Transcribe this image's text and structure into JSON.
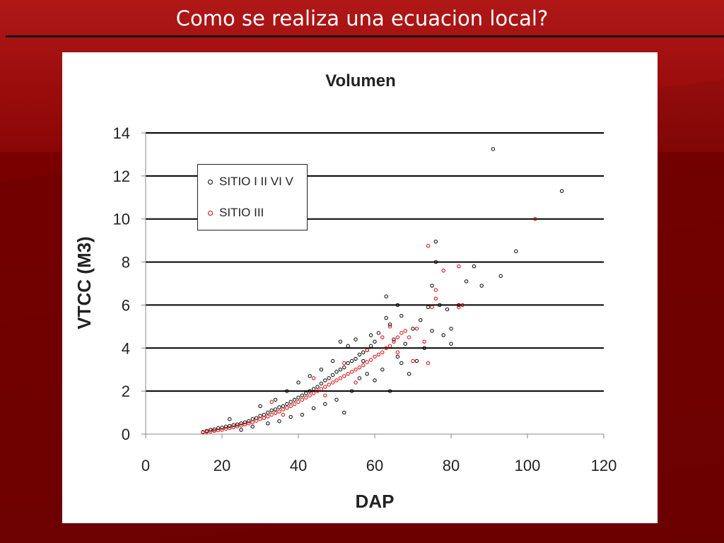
{
  "slide": {
    "title": "Como se realiza una ecuacion local?"
  },
  "colors": {
    "background": "#7a0000",
    "series_black": "#000000",
    "series_red": "#e00000"
  },
  "chart_data": {
    "type": "scatter",
    "title": "Volumen",
    "xlabel": "DAP",
    "ylabel": "VTCC (M3)",
    "xlim": [
      0,
      120
    ],
    "ylim": [
      0,
      14
    ],
    "xticks": [
      "0",
      "20",
      "40",
      "60",
      "80",
      "100",
      "120"
    ],
    "yticks": [
      "0",
      "2",
      "4",
      "6",
      "8",
      "10",
      "12",
      "14"
    ],
    "grid": "horizontal",
    "legend_position": "upper-left-inside",
    "series": [
      {
        "name": "SITIO I II VI V",
        "color": "#000000",
        "points": [
          [
            15,
            0.1
          ],
          [
            16,
            0.15
          ],
          [
            17,
            0.2
          ],
          [
            18,
            0.22
          ],
          [
            19,
            0.28
          ],
          [
            20,
            0.3
          ],
          [
            21,
            0.35
          ],
          [
            22,
            0.38
          ],
          [
            23,
            0.42
          ],
          [
            24,
            0.45
          ],
          [
            25,
            0.5
          ],
          [
            26,
            0.55
          ],
          [
            27,
            0.6
          ],
          [
            28,
            0.7
          ],
          [
            29,
            0.75
          ],
          [
            30,
            0.85
          ],
          [
            31,
            0.9
          ],
          [
            32,
            1.0
          ],
          [
            33,
            1.1
          ],
          [
            34,
            1.15
          ],
          [
            35,
            1.25
          ],
          [
            36,
            1.3
          ],
          [
            37,
            1.4
          ],
          [
            38,
            1.5
          ],
          [
            39,
            1.6
          ],
          [
            40,
            1.7
          ],
          [
            41,
            1.8
          ],
          [
            42,
            1.9
          ],
          [
            43,
            2.0
          ],
          [
            44,
            2.1
          ],
          [
            45,
            2.2
          ],
          [
            46,
            2.35
          ],
          [
            47,
            2.5
          ],
          [
            48,
            2.6
          ],
          [
            49,
            2.75
          ],
          [
            50,
            2.9
          ],
          [
            51,
            3.0
          ],
          [
            52,
            3.1
          ],
          [
            53,
            3.3
          ],
          [
            54,
            3.4
          ],
          [
            55,
            3.5
          ],
          [
            56,
            3.7
          ],
          [
            57,
            3.8
          ],
          [
            58,
            3.9
          ],
          [
            59,
            4.1
          ],
          [
            60,
            4.3
          ],
          [
            22,
            0.7
          ],
          [
            25,
            0.2
          ],
          [
            28,
            0.35
          ],
          [
            30,
            1.3
          ],
          [
            32,
            0.5
          ],
          [
            34,
            1.6
          ],
          [
            35,
            0.6
          ],
          [
            37,
            2.0
          ],
          [
            38,
            0.8
          ],
          [
            40,
            2.4
          ],
          [
            41,
            0.9
          ],
          [
            43,
            2.7
          ],
          [
            44,
            1.2
          ],
          [
            46,
            3.0
          ],
          [
            47,
            1.4
          ],
          [
            49,
            3.4
          ],
          [
            50,
            1.6
          ],
          [
            51,
            4.3
          ],
          [
            52,
            1.0
          ],
          [
            53,
            4.1
          ],
          [
            54,
            2.0
          ],
          [
            55,
            4.4
          ],
          [
            56,
            2.6
          ],
          [
            57,
            3.4
          ],
          [
            58,
            2.8
          ],
          [
            59,
            4.6
          ],
          [
            60,
            2.5
          ],
          [
            61,
            4.7
          ],
          [
            62,
            3.0
          ],
          [
            63,
            5.4
          ],
          [
            63,
            6.4
          ],
          [
            64,
            2.0
          ],
          [
            64,
            5.1
          ],
          [
            65,
            4.4
          ],
          [
            66,
            3.6
          ],
          [
            66,
            6.0
          ],
          [
            67,
            3.3
          ],
          [
            67,
            5.5
          ],
          [
            68,
            4.2
          ],
          [
            69,
            2.8
          ],
          [
            70,
            4.9
          ],
          [
            71,
            3.4
          ],
          [
            72,
            5.3
          ],
          [
            73,
            4.0
          ],
          [
            74,
            5.9
          ],
          [
            75,
            4.8
          ],
          [
            75,
            6.9
          ],
          [
            76,
            8.0
          ],
          [
            76,
            8.95
          ],
          [
            77,
            6.0
          ],
          [
            78,
            4.6
          ],
          [
            79,
            5.8
          ],
          [
            80,
            4.9
          ],
          [
            80,
            4.2
          ],
          [
            82,
            6.0
          ],
          [
            84,
            7.1
          ],
          [
            86,
            7.8
          ],
          [
            88,
            6.9
          ],
          [
            91,
            13.25
          ],
          [
            93,
            7.35
          ],
          [
            97,
            8.5
          ],
          [
            109,
            11.3
          ]
        ]
      },
      {
        "name": "SITIO III",
        "color": "#e00000",
        "points": [
          [
            15,
            0.08
          ],
          [
            16,
            0.1
          ],
          [
            17,
            0.12
          ],
          [
            18,
            0.15
          ],
          [
            19,
            0.18
          ],
          [
            20,
            0.2
          ],
          [
            21,
            0.25
          ],
          [
            22,
            0.28
          ],
          [
            23,
            0.32
          ],
          [
            24,
            0.36
          ],
          [
            25,
            0.4
          ],
          [
            26,
            0.45
          ],
          [
            27,
            0.5
          ],
          [
            28,
            0.55
          ],
          [
            29,
            0.62
          ],
          [
            30,
            0.7
          ],
          [
            31,
            0.75
          ],
          [
            32,
            0.82
          ],
          [
            33,
            0.9
          ],
          [
            34,
            0.98
          ],
          [
            35,
            1.05
          ],
          [
            36,
            1.15
          ],
          [
            37,
            1.22
          ],
          [
            38,
            1.3
          ],
          [
            39,
            1.4
          ],
          [
            40,
            1.5
          ],
          [
            41,
            1.6
          ],
          [
            42,
            1.7
          ],
          [
            43,
            1.8
          ],
          [
            44,
            1.9
          ],
          [
            45,
            2.0
          ],
          [
            46,
            2.1
          ],
          [
            47,
            2.2
          ],
          [
            48,
            2.3
          ],
          [
            49,
            2.4
          ],
          [
            50,
            2.5
          ],
          [
            51,
            2.6
          ],
          [
            52,
            2.7
          ],
          [
            53,
            2.8
          ],
          [
            54,
            2.9
          ],
          [
            55,
            3.0
          ],
          [
            56,
            3.1
          ],
          [
            57,
            3.2
          ],
          [
            58,
            3.35
          ],
          [
            59,
            3.45
          ],
          [
            60,
            3.6
          ],
          [
            61,
            3.7
          ],
          [
            62,
            3.8
          ],
          [
            63,
            4.0
          ],
          [
            64,
            4.1
          ],
          [
            65,
            4.3
          ],
          [
            66,
            4.5
          ],
          [
            67,
            4.7
          ],
          [
            68,
            4.8
          ],
          [
            69,
            4.5
          ],
          [
            70,
            3.4
          ],
          [
            71,
            4.9
          ],
          [
            73,
            4.3
          ],
          [
            74,
            3.3
          ],
          [
            74,
            8.75
          ],
          [
            75,
            5.9
          ],
          [
            76,
            6.3
          ],
          [
            76,
            6.7
          ],
          [
            78,
            7.6
          ],
          [
            82,
            5.9
          ],
          [
            82,
            7.8
          ],
          [
            83,
            6.0
          ],
          [
            102,
            10.0
          ],
          [
            33,
            1.5
          ],
          [
            36,
            0.9
          ],
          [
            44,
            2.6
          ],
          [
            47,
            1.8
          ],
          [
            52,
            3.3
          ],
          [
            55,
            2.4
          ],
          [
            58,
            3.9
          ],
          [
            62,
            4.5
          ],
          [
            64,
            5.0
          ],
          [
            66,
            3.8
          ]
        ]
      }
    ]
  }
}
